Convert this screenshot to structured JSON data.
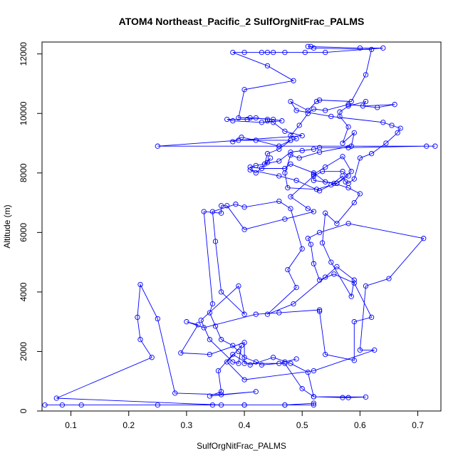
{
  "chart_data": {
    "type": "line",
    "title": "ATOM4 Northeast_Pacific_2 SulfOrgNitFrac_PALMS",
    "xlabel": "SulfOrgNitFrac_PALMS",
    "ylabel": "Altitude (m)",
    "xlim": [
      0.05,
      0.74
    ],
    "ylim": [
      0,
      12400
    ],
    "x_ticks": [
      0.1,
      0.2,
      0.3,
      0.4,
      0.5,
      0.6,
      0.7
    ],
    "x_tick_labels": [
      "0.1",
      "0.2",
      "0.3",
      "0.4",
      "0.5",
      "0.6",
      "0.7"
    ],
    "y_ticks": [
      0,
      2000,
      4000,
      6000,
      8000,
      10000,
      12000
    ],
    "y_tick_labels": [
      "0",
      "2000",
      "4000",
      "6000",
      "8000",
      "10000",
      "12000"
    ],
    "grid": false,
    "series": [
      {
        "color": "#0000ff",
        "marker": "open-circle",
        "points": [
          [
            0.055,
            200
          ],
          [
            0.085,
            200
          ],
          [
            0.118,
            200
          ],
          [
            0.25,
            200
          ],
          [
            0.345,
            200
          ],
          [
            0.4,
            200
          ],
          [
            0.47,
            200
          ],
          [
            0.52,
            200
          ],
          [
            0.52,
            260
          ],
          [
            0.47,
            200
          ],
          [
            0.4,
            200
          ],
          [
            0.36,
            200
          ],
          [
            0.075,
            430
          ],
          [
            0.24,
            1800
          ],
          [
            0.22,
            2400
          ],
          [
            0.215,
            3150
          ],
          [
            0.22,
            4250
          ],
          [
            0.25,
            3100
          ],
          [
            0.28,
            600
          ],
          [
            0.36,
            550
          ],
          [
            0.42,
            650
          ],
          [
            0.34,
            500
          ],
          [
            0.36,
            650
          ],
          [
            0.355,
            1350
          ],
          [
            0.38,
            1900
          ],
          [
            0.41,
            1550
          ],
          [
            0.45,
            1800
          ],
          [
            0.48,
            1600
          ],
          [
            0.51,
            1300
          ],
          [
            0.52,
            480
          ],
          [
            0.57,
            450
          ],
          [
            0.58,
            450
          ],
          [
            0.61,
            470
          ],
          [
            0.52,
            480
          ],
          [
            0.5,
            750
          ],
          [
            0.47,
            1600
          ],
          [
            0.4,
            1600
          ],
          [
            0.4,
            2300
          ],
          [
            0.34,
            1900
          ],
          [
            0.29,
            1950
          ],
          [
            0.32,
            2900
          ],
          [
            0.3,
            3000
          ],
          [
            0.33,
            2800
          ],
          [
            0.42,
            3250
          ],
          [
            0.46,
            3300
          ],
          [
            0.53,
            3400
          ],
          [
            0.53,
            3350
          ],
          [
            0.54,
            1900
          ],
          [
            0.59,
            1700
          ],
          [
            0.59,
            3000
          ],
          [
            0.62,
            3150
          ],
          [
            0.59,
            4300
          ],
          [
            0.555,
            4600
          ],
          [
            0.53,
            4400
          ],
          [
            0.52,
            4950
          ],
          [
            0.515,
            5600
          ],
          [
            0.51,
            5800
          ],
          [
            0.53,
            6000
          ],
          [
            0.58,
            6300
          ],
          [
            0.71,
            5800
          ],
          [
            0.65,
            4450
          ],
          [
            0.61,
            4200
          ],
          [
            0.6,
            2050
          ],
          [
            0.625,
            2050
          ],
          [
            0.52,
            1350
          ],
          [
            0.4,
            1050
          ],
          [
            0.37,
            1650
          ],
          [
            0.395,
            2200
          ],
          [
            0.39,
            1600
          ],
          [
            0.38,
            1650
          ],
          [
            0.34,
            2400
          ],
          [
            0.325,
            3050
          ],
          [
            0.39,
            4200
          ],
          [
            0.4,
            3250
          ],
          [
            0.36,
            4000
          ],
          [
            0.35,
            5700
          ],
          [
            0.345,
            6700
          ],
          [
            0.385,
            6950
          ],
          [
            0.4,
            6850
          ],
          [
            0.46,
            7050
          ],
          [
            0.48,
            6800
          ],
          [
            0.5,
            5450
          ],
          [
            0.475,
            4750
          ],
          [
            0.49,
            4150
          ],
          [
            0.44,
            3250
          ],
          [
            0.485,
            3600
          ],
          [
            0.54,
            4500
          ],
          [
            0.56,
            4850
          ],
          [
            0.59,
            4400
          ],
          [
            0.585,
            3850
          ],
          [
            0.55,
            5000
          ],
          [
            0.535,
            5650
          ],
          [
            0.54,
            6650
          ],
          [
            0.56,
            6300
          ],
          [
            0.59,
            7000
          ],
          [
            0.6,
            7300
          ],
          [
            0.58,
            7500
          ],
          [
            0.555,
            7650
          ],
          [
            0.52,
            7750
          ],
          [
            0.52,
            7950
          ],
          [
            0.54,
            8200
          ],
          [
            0.57,
            8550
          ],
          [
            0.585,
            8050
          ],
          [
            0.56,
            7650
          ],
          [
            0.525,
            7450
          ],
          [
            0.475,
            7500
          ],
          [
            0.47,
            8000
          ],
          [
            0.48,
            8600
          ],
          [
            0.495,
            8500
          ],
          [
            0.53,
            8700
          ],
          [
            0.585,
            8900
          ],
          [
            0.59,
            9350
          ],
          [
            0.57,
            9000
          ],
          [
            0.58,
            9550
          ],
          [
            0.565,
            9900
          ],
          [
            0.565,
            10050
          ],
          [
            0.58,
            10250
          ],
          [
            0.61,
            10400
          ],
          [
            0.605,
            10250
          ],
          [
            0.66,
            10300
          ],
          [
            0.63,
            10200
          ],
          [
            0.58,
            10300
          ],
          [
            0.54,
            10100
          ],
          [
            0.52,
            10150
          ],
          [
            0.51,
            10000
          ],
          [
            0.495,
            9600
          ],
          [
            0.48,
            9250
          ],
          [
            0.49,
            9150
          ],
          [
            0.48,
            9100
          ],
          [
            0.46,
            8900
          ],
          [
            0.42,
            9100
          ],
          [
            0.395,
            9200
          ],
          [
            0.38,
            9050
          ],
          [
            0.39,
            9100
          ],
          [
            0.48,
            9100
          ],
          [
            0.46,
            8800
          ],
          [
            0.44,
            8650
          ],
          [
            0.435,
            8300
          ],
          [
            0.445,
            8500
          ],
          [
            0.44,
            8350
          ],
          [
            0.42,
            8000
          ],
          [
            0.41,
            8100
          ],
          [
            0.46,
            7900
          ],
          [
            0.49,
            7750
          ],
          [
            0.53,
            7400
          ],
          [
            0.55,
            7600
          ],
          [
            0.57,
            7900
          ],
          [
            0.575,
            7700
          ],
          [
            0.58,
            7650
          ],
          [
            0.59,
            7800
          ],
          [
            0.6,
            8500
          ],
          [
            0.62,
            8650
          ],
          [
            0.645,
            9000
          ],
          [
            0.665,
            9350
          ],
          [
            0.67,
            9500
          ],
          [
            0.655,
            9600
          ],
          [
            0.64,
            9700
          ],
          [
            0.55,
            9900
          ],
          [
            0.49,
            10100
          ],
          [
            0.48,
            10400
          ],
          [
            0.51,
            10100
          ],
          [
            0.525,
            10400
          ],
          [
            0.53,
            10450
          ],
          [
            0.585,
            10400
          ],
          [
            0.61,
            11300
          ],
          [
            0.62,
            12150
          ],
          [
            0.52,
            12200
          ],
          [
            0.515,
            12250
          ],
          [
            0.51,
            12250
          ],
          [
            0.6,
            12200
          ],
          [
            0.64,
            12200
          ],
          [
            0.54,
            12050
          ],
          [
            0.505,
            12050
          ],
          [
            0.47,
            12050
          ],
          [
            0.45,
            12050
          ],
          [
            0.44,
            12050
          ],
          [
            0.43,
            12050
          ],
          [
            0.4,
            12050
          ],
          [
            0.38,
            12050
          ],
          [
            0.44,
            11600
          ],
          [
            0.485,
            11100
          ],
          [
            0.4,
            10800
          ],
          [
            0.39,
            9850
          ],
          [
            0.41,
            9850
          ],
          [
            0.45,
            9800
          ],
          [
            0.465,
            9750
          ],
          [
            0.43,
            9700
          ],
          [
            0.38,
            9750
          ],
          [
            0.37,
            9800
          ],
          [
            0.405,
            9800
          ],
          [
            0.42,
            9850
          ],
          [
            0.44,
            9800
          ],
          [
            0.44,
            9750
          ],
          [
            0.45,
            9700
          ],
          [
            0.47,
            9400
          ],
          [
            0.5,
            9250
          ],
          [
            0.25,
            8900
          ],
          [
            0.73,
            8900
          ],
          [
            0.715,
            8900
          ],
          [
            0.58,
            8850
          ],
          [
            0.53,
            8850
          ],
          [
            0.52,
            8800
          ],
          [
            0.5,
            8750
          ],
          [
            0.48,
            8700
          ],
          [
            0.46,
            8400
          ],
          [
            0.42,
            8250
          ],
          [
            0.41,
            8200
          ],
          [
            0.43,
            8150
          ],
          [
            0.47,
            8150
          ],
          [
            0.48,
            8300
          ],
          [
            0.52,
            8000
          ],
          [
            0.54,
            7700
          ],
          [
            0.56,
            7650
          ],
          [
            0.58,
            7900
          ],
          [
            0.57,
            8050
          ],
          [
            0.535,
            8050
          ],
          [
            0.52,
            7900
          ],
          [
            0.48,
            7200
          ],
          [
            0.51,
            6800
          ],
          [
            0.52,
            6700
          ],
          [
            0.47,
            6450
          ],
          [
            0.4,
            6100
          ],
          [
            0.37,
            6900
          ],
          [
            0.36,
            6900
          ],
          [
            0.36,
            6650
          ],
          [
            0.33,
            6700
          ],
          [
            0.345,
            3600
          ],
          [
            0.34,
            3300
          ],
          [
            0.35,
            2850
          ],
          [
            0.36,
            2400
          ],
          [
            0.38,
            2200
          ],
          [
            0.39,
            2000
          ],
          [
            0.4,
            1800
          ],
          [
            0.42,
            1650
          ],
          [
            0.43,
            1550
          ],
          [
            0.46,
            1600
          ],
          [
            0.47,
            1650
          ],
          [
            0.49,
            1750
          ]
        ]
      }
    ]
  }
}
